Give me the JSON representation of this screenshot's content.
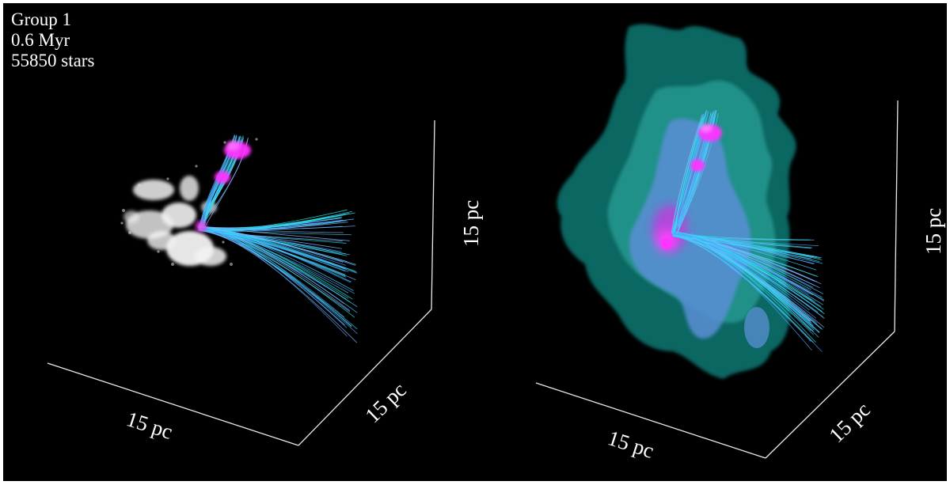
{
  "info": {
    "group": "Group 1",
    "age": "0.6 Myr",
    "stars": "55850 stars"
  },
  "scale_labels": {
    "left_panel": {
      "x_axis": "15 pc",
      "y_axis": "15 pc",
      "z_axis": "15 pc"
    },
    "right_panel": {
      "x_axis": "15 pc",
      "y_axis": "15 pc",
      "z_axis": "15 pc"
    }
  },
  "colors": {
    "background": "#000000",
    "stars": "#ff33ff",
    "field_lines_cyan": "#22e6e6",
    "field_lines_blue": "#4f9cff",
    "gas_white": "#f2f2f2",
    "gas_outer": "#0f6f6a",
    "gas_mid": "#2aa39a",
    "gas_inner": "#5a8fd6"
  }
}
